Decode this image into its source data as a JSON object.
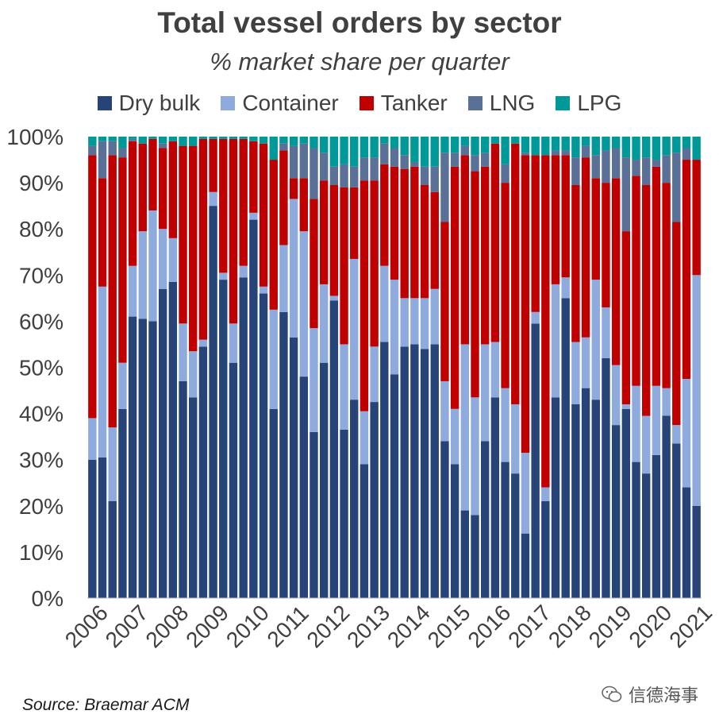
{
  "chart_data": {
    "type": "bar",
    "stacked": true,
    "title": "Total vessel orders by sector",
    "subtitle": "% market share per quarter",
    "ylim": [
      0,
      100
    ],
    "yticks": [
      "0%",
      "10%",
      "20%",
      "30%",
      "40%",
      "50%",
      "60%",
      "70%",
      "80%",
      "90%",
      "100%"
    ],
    "xtick_labels": [
      "2006",
      "2007",
      "2008",
      "2009",
      "2010",
      "2011",
      "2012",
      "2013",
      "2014",
      "2015",
      "2016",
      "2017",
      "2018",
      "2019",
      "2020",
      "2021"
    ],
    "categories": [
      "2006Q1",
      "2006Q2",
      "2006Q3",
      "2006Q4",
      "2007Q1",
      "2007Q2",
      "2007Q3",
      "2007Q4",
      "2008Q1",
      "2008Q2",
      "2008Q3",
      "2008Q4",
      "2009Q1",
      "2009Q2",
      "2009Q3",
      "2009Q4",
      "2010Q1",
      "2010Q2",
      "2010Q3",
      "2010Q4",
      "2011Q1",
      "2011Q2",
      "2011Q3",
      "2011Q4",
      "2012Q1",
      "2012Q2",
      "2012Q3",
      "2012Q4",
      "2013Q1",
      "2013Q2",
      "2013Q3",
      "2013Q4",
      "2014Q1",
      "2014Q2",
      "2014Q3",
      "2014Q4",
      "2015Q1",
      "2015Q2",
      "2015Q3",
      "2015Q4",
      "2016Q1",
      "2016Q2",
      "2016Q3",
      "2016Q4",
      "2017Q1",
      "2017Q2",
      "2017Q3",
      "2017Q4",
      "2018Q1",
      "2018Q2",
      "2018Q3",
      "2018Q4",
      "2019Q1",
      "2019Q2",
      "2019Q3",
      "2019Q4",
      "2020Q1",
      "2020Q2",
      "2020Q3",
      "2020Q4",
      "2021Q1"
    ],
    "series": [
      {
        "name": "Dry bulk",
        "color": "#264478",
        "values": [
          30,
          30.5,
          21,
          41,
          61,
          60.5,
          60,
          67,
          68.5,
          47,
          43.5,
          54.5,
          85,
          69,
          51,
          69.5,
          82,
          66,
          41,
          62,
          56.5,
          48,
          36,
          51,
          64.5,
          36.5,
          43,
          29,
          42.5,
          55.5,
          48.5,
          54.5,
          55,
          54,
          55,
          34,
          29,
          19,
          18,
          34,
          43.5,
          29.5,
          27,
          14,
          59.5,
          21,
          43.5,
          65,
          42,
          45.5,
          43,
          52,
          37.5,
          41,
          29.5,
          27,
          31,
          39.5,
          33.5,
          24,
          20
        ]
      },
      {
        "name": "Container",
        "color": "#8FAADC",
        "values": [
          9,
          37,
          16,
          10,
          11,
          19,
          24,
          13,
          9.5,
          12.5,
          10,
          1.5,
          3,
          1.5,
          8.5,
          2.5,
          1.5,
          1.5,
          21.5,
          14.5,
          30,
          31.5,
          22.5,
          17,
          1,
          18.5,
          30.5,
          11.5,
          12,
          16.5,
          20.5,
          10.5,
          10,
          11,
          12,
          13,
          12,
          36,
          25.5,
          21,
          12,
          16,
          15,
          17.5,
          2.5,
          3,
          24.5,
          4.5,
          13.5,
          11,
          26,
          11,
          13,
          1,
          16.5,
          12.5,
          15,
          6,
          4,
          23.5,
          50
        ]
      },
      {
        "name": "Tanker",
        "color": "#C00000",
        "values": [
          57,
          23.5,
          59,
          44.5,
          27,
          19,
          15.5,
          17.5,
          21,
          38.5,
          44.5,
          43.5,
          11.5,
          29,
          40,
          27.5,
          15.5,
          31,
          32.5,
          20.5,
          4.5,
          11.5,
          28,
          22.5,
          24,
          34,
          15.5,
          50,
          36,
          22,
          24.5,
          28,
          28.5,
          24.5,
          21,
          34.5,
          52.5,
          41,
          49,
          38.5,
          43,
          44.5,
          56.5,
          64.5,
          34,
          72,
          28,
          26.5,
          34,
          39,
          22,
          27,
          40.5,
          37.5,
          45.5,
          50,
          47.5,
          44.5,
          44,
          47.5,
          25
        ]
      },
      {
        "name": "LNG",
        "color": "#5B7096",
        "values": [
          2,
          8,
          3,
          2,
          0.5,
          0,
          0,
          1,
          0,
          0,
          0,
          0,
          0,
          0,
          0,
          0,
          0,
          0,
          0,
          1.5,
          7,
          7.5,
          11,
          6,
          4,
          5,
          4.5,
          5,
          5,
          4.5,
          4,
          3,
          1,
          4,
          5.5,
          15,
          3,
          2,
          3.5,
          3,
          0,
          4,
          0,
          0.5,
          0,
          0,
          1,
          1,
          6,
          2.5,
          5,
          7,
          6.5,
          16,
          3.5,
          6,
          1.5,
          6,
          15,
          2.5,
          0
        ]
      },
      {
        "name": "LPG",
        "color": "#009999",
        "values": [
          2,
          1,
          1,
          2.5,
          0.5,
          1.5,
          0.5,
          1.5,
          1,
          2,
          2,
          0.5,
          0.5,
          0.5,
          0.5,
          0.5,
          1,
          1.5,
          5,
          1.5,
          2,
          1.5,
          2.5,
          3.5,
          6.5,
          6,
          6.5,
          4.5,
          4.5,
          1.5,
          2.5,
          4,
          5.5,
          6.5,
          6.5,
          3.5,
          3.5,
          2,
          4,
          3.5,
          1.5,
          6,
          1.5,
          3.5,
          4,
          4,
          3,
          3,
          4.5,
          2,
          4,
          3,
          2.5,
          4.5,
          5,
          4.5,
          5,
          4,
          3.5,
          2.5,
          5
        ]
      }
    ]
  },
  "source_note": "Source: Braemar ACM",
  "watermark": "信德海事"
}
